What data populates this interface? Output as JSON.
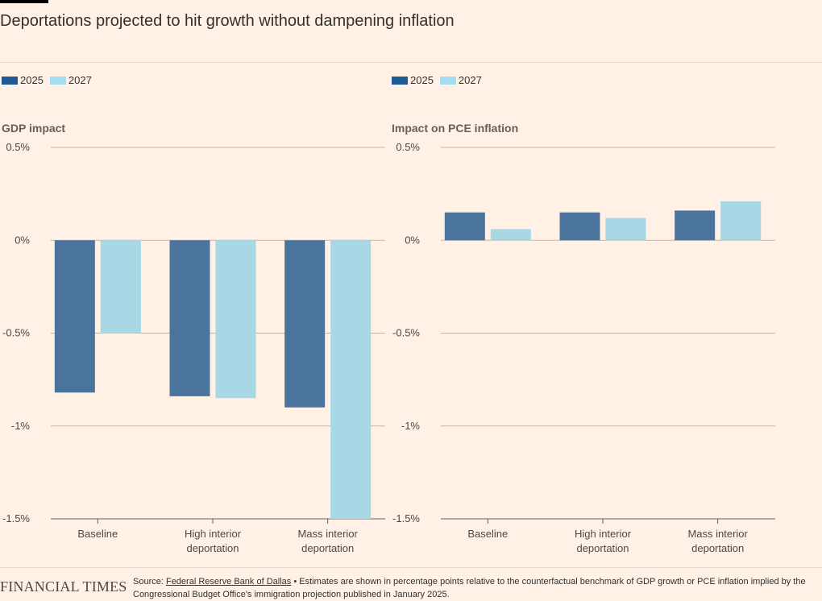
{
  "header": {
    "title": "Deportations projected to hit growth without dampening inflation"
  },
  "legend": {
    "items": [
      {
        "label": "2025",
        "color": "#1f5a96"
      },
      {
        "label": "2027",
        "color": "#a6dcf0"
      }
    ]
  },
  "colors": {
    "series_2025_bar": "#4a749e",
    "series_2027_bar": "#a8d8e6",
    "gridline": "#c2b6ab",
    "text": "#33302e",
    "background": "#fff1e5"
  },
  "chart_data": [
    {
      "type": "bar",
      "title": "GDP impact",
      "categories": [
        "Baseline",
        "High interior deportation",
        "Mass interior deportation"
      ],
      "category_lines": [
        [
          "Baseline"
        ],
        [
          "High interior",
          "deportation"
        ],
        [
          "Mass interior",
          "deportation"
        ]
      ],
      "series": [
        {
          "name": "2025",
          "values": [
            -0.82,
            -0.84,
            -0.9
          ]
        },
        {
          "name": "2027",
          "values": [
            -0.5,
            -0.85,
            -1.5
          ]
        }
      ],
      "ylim": [
        -1.5,
        0.5
      ],
      "yticks": [
        0.5,
        0,
        -0.5,
        -1,
        -1.5
      ],
      "yticklabels": [
        "0.5%",
        "0%",
        "-0.5%",
        "-1%",
        "-1.5%"
      ],
      "grid": true,
      "legend": "top-left"
    },
    {
      "type": "bar",
      "title": "Impact on PCE inflation",
      "categories": [
        "Baseline",
        "High interior deportation",
        "Mass interior deportation"
      ],
      "category_lines": [
        [
          "Baseline"
        ],
        [
          "High interior",
          "deportation"
        ],
        [
          "Mass interior",
          "deportation"
        ]
      ],
      "series": [
        {
          "name": "2025",
          "values": [
            0.15,
            0.15,
            0.16
          ]
        },
        {
          "name": "2027",
          "values": [
            0.06,
            0.12,
            0.21
          ]
        }
      ],
      "ylim": [
        -1.5,
        0.5
      ],
      "yticks": [
        0.5,
        0,
        -0.5,
        -1,
        -1.5
      ],
      "yticklabels": [
        "0.5%",
        "0%",
        "-0.5%",
        "-1%",
        "-1.5%"
      ],
      "grid": true,
      "legend": "top-left"
    }
  ],
  "footer": {
    "logo": "FINANCIAL TIMES",
    "source_prefix": "Source: ",
    "source_link": "Federal Reserve Bank of Dallas",
    "source_note": " • Estimates are shown in percentage points relative to the counterfactual benchmark of GDP growth or PCE inflation implied by the Congressional Budget Office's immigration projection published in January 2025."
  }
}
